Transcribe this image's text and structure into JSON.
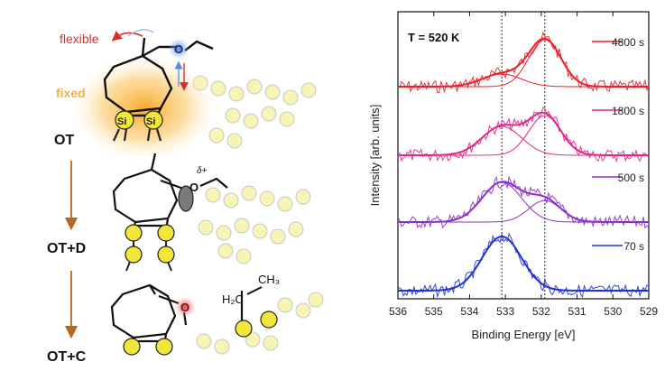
{
  "schematic": {
    "flexible_label": "flexible",
    "fixed_label": "fixed",
    "si_label": "Si",
    "oxygen_label": "O",
    "delta_label": "δ+",
    "h2c_label": "H₂C",
    "ch3_label": "CH₃",
    "states": [
      "OT",
      "OT+D",
      "OT+C"
    ],
    "colors": {
      "flexible": "#d9302a",
      "fixed": "#f0a030",
      "arrow": "#b8651e",
      "atom": "#f2e63a"
    }
  },
  "chart_data": {
    "type": "line",
    "title": "T = 520 K",
    "xlabel": "Binding Energy [eV]",
    "ylabel": "Intensity [arb. units]",
    "xlim": [
      536,
      529
    ],
    "x_reversed": true,
    "xticks": [
      536,
      535,
      534,
      533,
      532,
      531,
      530,
      529
    ],
    "reference_lines": [
      533.1,
      531.9
    ],
    "series": [
      {
        "name": "4800 s",
        "color": "#e8202a",
        "peaks": [
          533.1,
          531.9
        ],
        "dominant_peak": 531.9
      },
      {
        "name": "1800 s",
        "color": "#e0288a",
        "peaks": [
          533.1,
          531.9
        ]
      },
      {
        "name": "500 s",
        "color": "#8a30c8",
        "peaks": [
          533.1,
          531.9
        ]
      },
      {
        "name": "70 s",
        "color": "#2030d8",
        "peaks": [
          533.1
        ],
        "dominant_peak": 533.1
      }
    ]
  }
}
